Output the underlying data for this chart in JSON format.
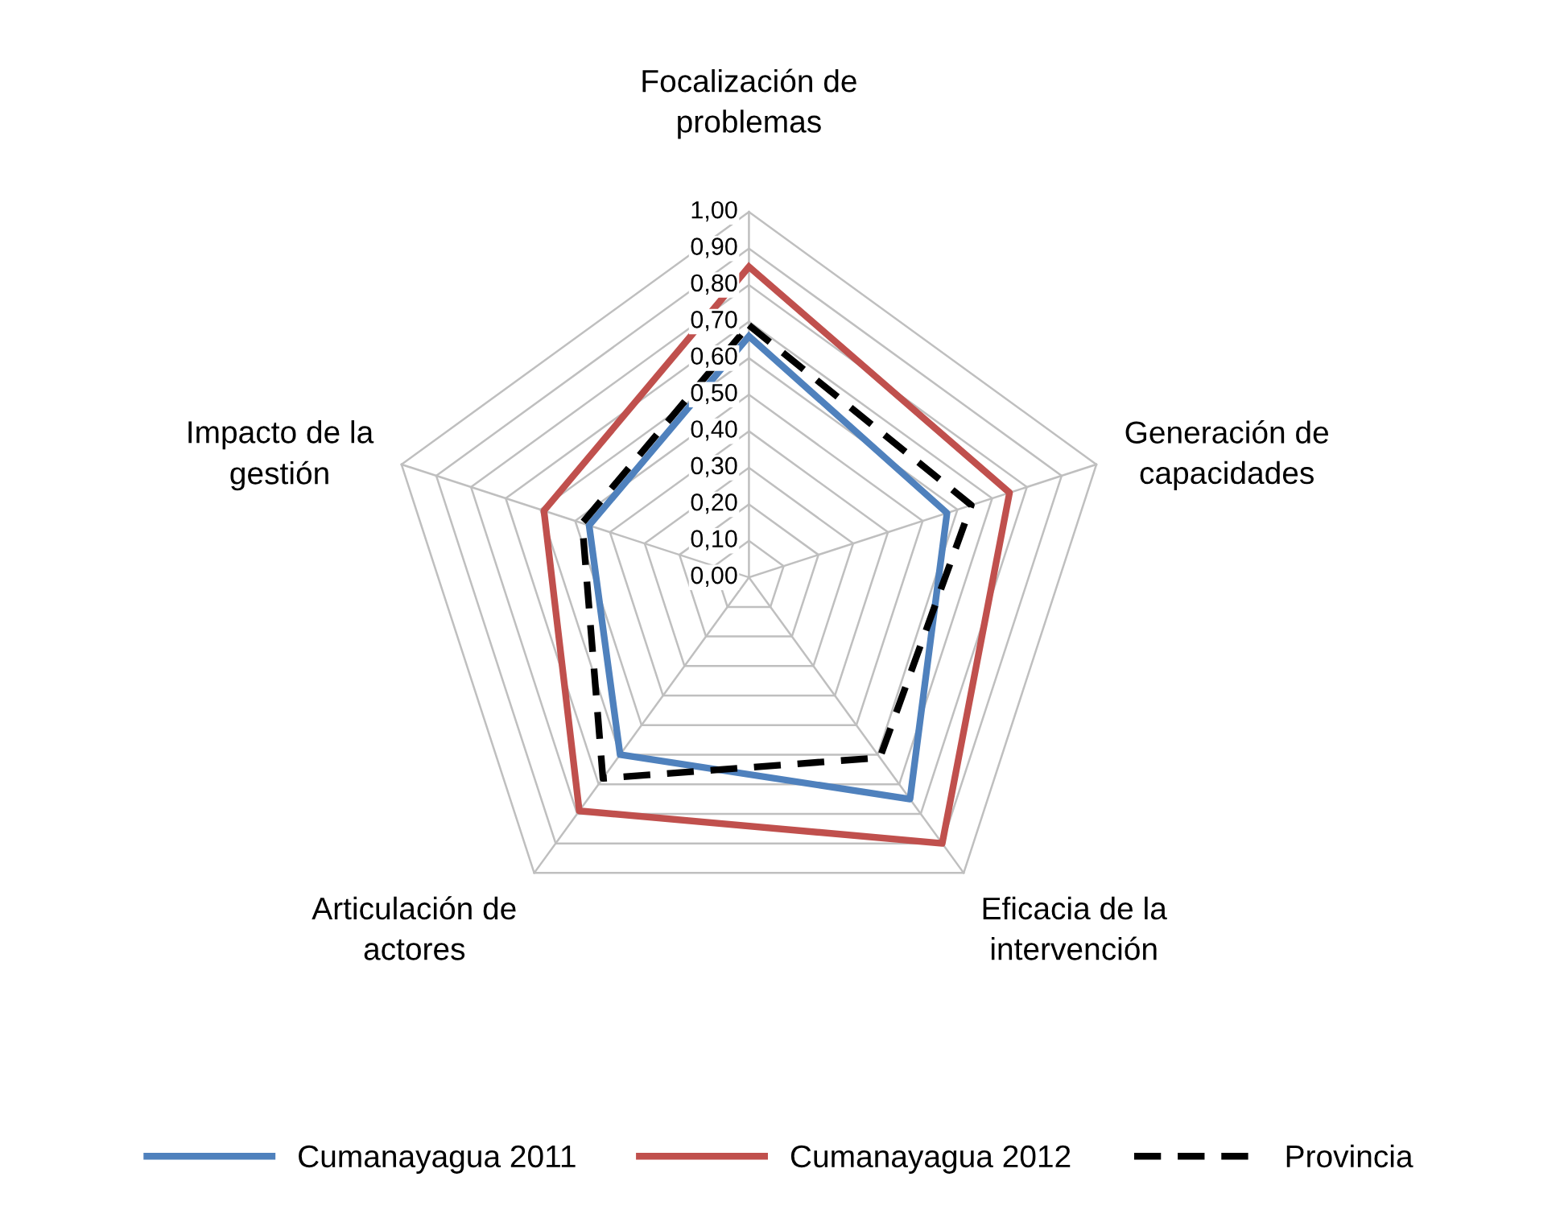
{
  "chart_data": {
    "type": "radar",
    "categories": [
      "Focalización de\nproblemas",
      "Generación de\ncapacidades",
      "Eficacia de la\nintervención",
      "Articulación de\nactores",
      "Impacto de la\ngestión"
    ],
    "series": [
      {
        "name": "Cumanayagua 2011",
        "color": "#4f81bd",
        "values": [
          0.66,
          0.57,
          0.75,
          0.6,
          0.46
        ],
        "line_style": "solid"
      },
      {
        "name": "Cumanayagua 2012",
        "color": "#c0504d",
        "values": [
          0.85,
          0.75,
          0.9,
          0.79,
          0.59
        ],
        "line_style": "solid"
      },
      {
        "name": "Provincia",
        "color": "#000000",
        "values": [
          0.69,
          0.64,
          0.61,
          0.68,
          0.48
        ],
        "line_style": "dashed"
      }
    ],
    "ylim": [
      0,
      1
    ],
    "yticks": [
      {
        "value": 0,
        "label": "0,00"
      },
      {
        "value": 0.1,
        "label": "0,10"
      },
      {
        "value": 0.2,
        "label": "0,20"
      },
      {
        "value": 0.3,
        "label": "0,30"
      },
      {
        "value": 0.4,
        "label": "0,40"
      },
      {
        "value": 0.5,
        "label": "0,50"
      },
      {
        "value": 0.6,
        "label": "0,60"
      },
      {
        "value": 0.7,
        "label": "0,70"
      },
      {
        "value": 0.8,
        "label": "0,80"
      },
      {
        "value": 0.9,
        "label": "0,90"
      },
      {
        "value": 1,
        "label": "1,00"
      }
    ],
    "grid": true,
    "legend": "bottom",
    "marker": "none"
  }
}
